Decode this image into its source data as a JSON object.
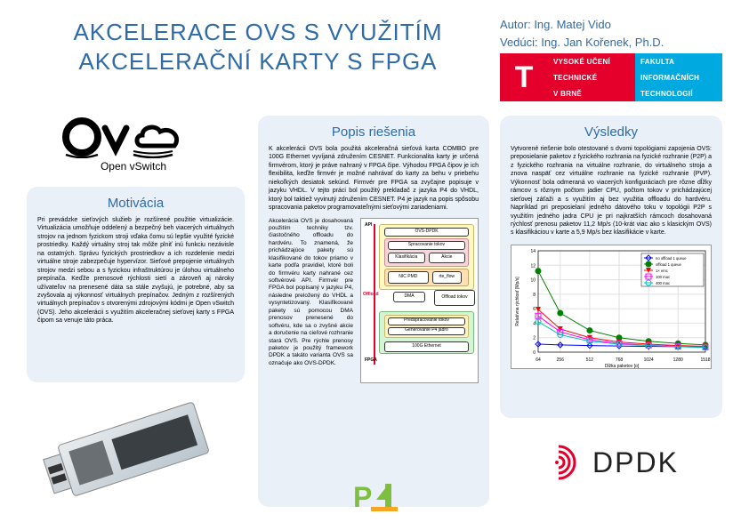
{
  "title": "AKCELERACE OVS S VYUŽITÍM AKCELERAČNÍ KARTY S FPGA",
  "author_label": "Autor:",
  "author": "Ing. Matej Vido",
  "supervisor_label": "Vedúci:",
  "supervisor": "Ing. Jan Kořenek, Ph.D.",
  "university_logo": {
    "t": "T",
    "cells": [
      {
        "text": "VYSOKÉ UČENÍ",
        "bg": "#e4002b"
      },
      {
        "text": "FAKULTA",
        "bg": "#00a9e0"
      },
      {
        "text": "TECHNICKÉ",
        "bg": "#e4002b"
      },
      {
        "text": "INFORMAČNÍCH",
        "bg": "#00a9e0"
      },
      {
        "text": "V BRNĚ",
        "bg": "#e4002b"
      },
      {
        "text": "TECHNOLOGIÍ",
        "bg": "#00a9e0"
      }
    ]
  },
  "ovs_caption": "Open vSwitch",
  "motivacia": {
    "title": "Motivácia",
    "body": "Pri prevádzke sieťových služieb je rozšírené použitie virtualizácie. Virtualizácia umožňuje oddelený a bezpečný beh viacerých virtuálnych strojov na jednom fyzickom stroji vďaka čomu sú lepšie využité fyzické prostriedky. Každý virtuálny stroj tak môže plniť inú funkciu nezávisle na ostatných. Správu fyzických prostriedkov a ich rozdelenie medzi virtuálne stroje zabezpečuje hypervízor. Sieťové prepojenie virtuálnych strojov medzi sebou a s fyzickou infraštruktúrou je úlohou virtuálneho prepínača. Keďže prenosové rýchlosti sietí a zároveň aj nároky užívateľov na prenesené dáta sa stále zvyšujú, je potrebné, aby sa zvyšovala aj výkonnosť virtuálnych prepínačov. Jedným z rozšírených virtuálnych prepínačov s otvorenými zdrojovými kódmi je Open vSwitch (OVS). Jeho akcelerácii s využitím akceleračnej sieťovej karty s FPGA čipom sa venuje táto práca."
  },
  "popis": {
    "title": "Popis riešenia",
    "body_top": "K akcelerácii OVS bola použitá akceleračná sieťová karta COMBO pre 100G Ethernet vyvíjaná združením CESNET. Funkcionalita karty je určená firmvérom, ktorý je práve nahraný v FPGA čipe. Výhodou FPGA čipov je ich flexibilita, keďže firmvér je možné nahrávať do karty za behu v priebehu niekoľkých desiatok sekúnd. Firmvér pre FPGA sa zvyčajne popisuje v jazyku VHDL. V tejto práci bol použitý prekladač z jazyka P4 do VHDL, ktorý bol taktiež vyvinutý združením CESNET. P4 je jazyk na popis spôsobu spracovania paketov programovateľnými sieťovými zariadeniami.",
    "body_side": "Akcelerácia OVS je dosahovaná použitím techniky tzv. čiastočného offloadu do hardvéru. To znamená, že prichádzajúce pakety sú klasifikované do tokov priamo v karte podľa pravidiel, ktoré boli do firmvéru karty nahrané cez softvérové API. Firmvér pre FPGA bol popísaný v jazyku P4, následne preložený do VHDL a vysyntetizovaný. Klasifikované pakety sú pomocou DMA prenosov prenesené do softvéru, kde sa o zvyšné akcie a doručenie na cieľové rozhranie stará OVS. Pre rýchle prenosy paketov je použitý framework DPDK a takáto varianta OVS sa označuje ako OVS-DPDK.",
    "diagram": {
      "api_label": "API",
      "ovs_dpdk": "OVS-DPDK",
      "spracovanie": "Spracovanie tokov",
      "klasifikacia": "Klasifikácia",
      "akcie": "Akcie",
      "nicpmd": "NIC PMD",
      "rteflow": "rte_flow",
      "offload": "Offload",
      "dma": "DMA",
      "offload_tokov": "Offload tokov",
      "predspracovanie": "Predspracovanie tokov",
      "generovanie": "Generovanie P4 jadro",
      "fpga": "FPGA",
      "ethernet": "100G Ethernet",
      "api_box_color": "#fff9c4",
      "pipeline_color": "#f8d7da",
      "nic_color": "#ffe0b2",
      "fpga_box_color": "#d4f5d4",
      "pred_box_color": "#fff3c0",
      "api_arrow_color": "#e4002b"
    }
  },
  "vysledky": {
    "title": "Výsledky",
    "body": "Vytvorené riešenie bolo otestované s dvomi topológiami zapojenia OVS: preposielanie paketov z fyzického rozhrania na fyzické rozhranie (P2P) a z fyzického rozhrania na virtuálne rozhranie, do virtuálneho stroja a znova naspäť cez virtuálne rozhranie na fyzické rozhranie (PVP). Výkonnosť bola odmeraná vo viacerých konfiguráciach pre rôzne dĺžky rámcov s rôznym počtom jadier CPU, počtom tokov v prichádzajúcej sieťovej záťaži a s využitím aj bez využitia offloadu do hardvéru. Napríklad pri preposielaní jedného dátového toku v topológii P2P s využitím jedného jadra CPU je pri najkratších rámcoch dosahovaná rýchlosť prenosu paketov 11,2 Mp/s (10-krát viac ako s klasickým OVS) s klasifikáciou v karte a 5,9 Mp/s bez klasifikácie v karte.",
    "chart": {
      "xlabel": "Dĺžka paketov [o]",
      "ylabel": "Relatívna rýchlosť [Mp/s]",
      "xlim": [
        64,
        1518
      ],
      "ylim": [
        0,
        14
      ],
      "ytick_step": 2,
      "xticks": [
        64,
        256,
        512,
        768,
        1024,
        1280,
        1518
      ],
      "grid_color": "#e0e0e0",
      "legend": [
        "no offload 1 queue",
        "offload 1 queue",
        "1× emc",
        "100 mac",
        "400 mac"
      ],
      "series": [
        {
          "name": "no offload 1 queue",
          "color": "#0000ff",
          "marker": "diamond-open",
          "y": [
            1.1,
            1.0,
            0.9,
            0.85,
            0.8,
            0.75,
            0.7
          ]
        },
        {
          "name": "offload 1 queue",
          "color": "#008000",
          "marker": "circle",
          "y": [
            11.2,
            5.4,
            3.0,
            2.0,
            1.5,
            1.2,
            1.0
          ]
        },
        {
          "name": "1× emc",
          "color": "#ff0000",
          "marker": "triangle-down",
          "y": [
            5.9,
            3.2,
            2.0,
            1.4,
            1.1,
            0.9,
            0.8
          ]
        },
        {
          "name": "100 mac",
          "color": "#ff00ff",
          "marker": "square-open",
          "y": [
            5.0,
            2.8,
            1.7,
            1.2,
            0.95,
            0.8,
            0.7
          ]
        },
        {
          "name": "400 mac",
          "color": "#00c0c0",
          "marker": "circle-open",
          "y": [
            4.2,
            2.4,
            1.5,
            1.1,
            0.9,
            0.75,
            0.65
          ]
        }
      ]
    }
  },
  "dpdk_text": "DPDK",
  "dpdk_color": "#e4002b",
  "p4_green": "#7fbf3f",
  "p4_orange": "#f5a623"
}
